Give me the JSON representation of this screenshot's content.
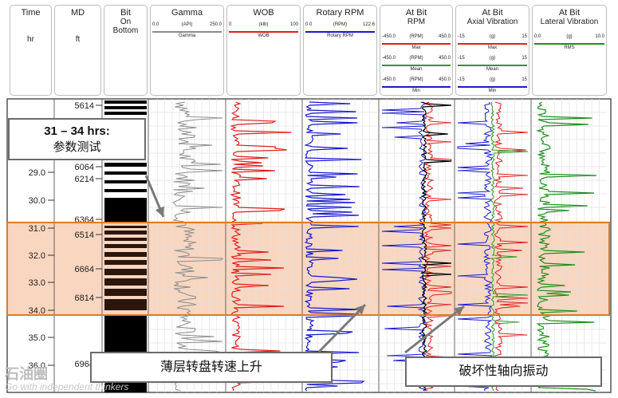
{
  "headers": {
    "time": {
      "title": "Time",
      "unit": "hr"
    },
    "md": {
      "title": "MD",
      "unit": "ft"
    },
    "bit": {
      "title_1": "Bit",
      "title_2": "On",
      "title_3": "Bottom"
    },
    "gamma": {
      "title": "Gamma",
      "min": "0.0",
      "unit": "(API)",
      "max": "250.0",
      "sub": "Gamma"
    },
    "wob": {
      "title": "WOB",
      "min": "0",
      "unit": "(klb)",
      "max": "100",
      "sub": "WOB"
    },
    "rpm": {
      "title": "Rotary RPM",
      "min": "0.0",
      "unit": "(RPM)",
      "max": "122.6",
      "sub": "Rotary RPM"
    },
    "atbit_rpm": {
      "title_1": "At Bit",
      "title_2": "RPM",
      "rows": [
        {
          "min": "-450.0",
          "unit": "(RPM)",
          "max": "450.0",
          "label": "Max"
        },
        {
          "min": "-450.0",
          "unit": "(RPM)",
          "max": "450.0",
          "label": "Mean"
        },
        {
          "min": "-450.0",
          "unit": "(RPM)",
          "max": "450.0",
          "label": "Min"
        }
      ]
    },
    "axial": {
      "title_1": "At Bit",
      "title_2": "Axial Vibration",
      "rows": [
        {
          "min": "-15",
          "unit": "(g)",
          "max": "15",
          "label": "Max"
        },
        {
          "min": "-15",
          "unit": "(g)",
          "max": "15",
          "label": "Mean"
        },
        {
          "min": "-15",
          "unit": "(g)",
          "max": "15",
          "label": "Min"
        }
      ]
    },
    "lateral": {
      "title_1": "At Bit",
      "title_2": "Lateral Vibration",
      "min": "0.0",
      "unit": "(g)",
      "max": "10.0",
      "sub": "RMS"
    }
  },
  "time_ticks": [
    "29.0",
    "30.0",
    "31.0",
    "32.0",
    "33.0",
    "34.0",
    "35.0",
    "36.0"
  ],
  "md_ticks": [
    "5614",
    "6064",
    "6214",
    "6364",
    "6514",
    "6664",
    "6814",
    "6964"
  ],
  "callouts": {
    "left_line1": "31 – 34 hrs:",
    "left_line2": "参数测试",
    "bottom_center": "薄层转盘转速上升",
    "bottom_right": "破坏性轴向振动"
  },
  "watermark": {
    "text": "石油圈",
    "sub": "Go with independent thinkers"
  },
  "colors": {
    "highlight_fill": "#f9d6bf",
    "highlight_border": "#e07a25",
    "gamma": "#8c8c8c",
    "wob": "#e02020",
    "rpm": "#1a1ad0",
    "atbit_max": "#e02020",
    "atbit_mean": "#2a9a2a",
    "atbit_min": "#1a1ad0",
    "lateral": "#1f8f1f",
    "arrow": "#7a7a7a"
  }
}
